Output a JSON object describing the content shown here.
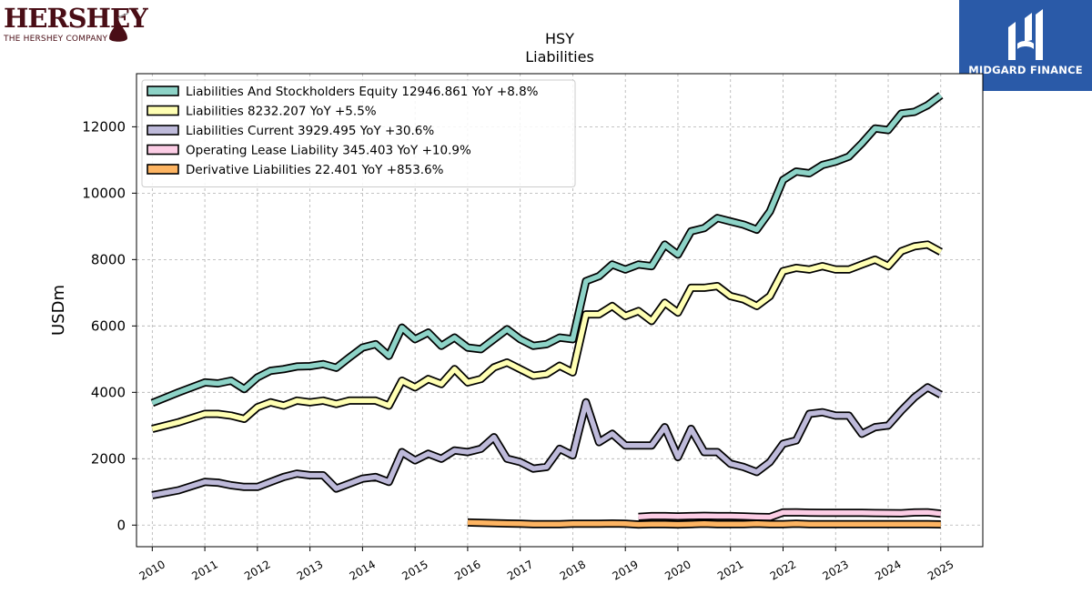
{
  "header": {
    "company_logo_text": "HERSHEY",
    "company_logo_subtext": "THE HERSHEY COMPANY",
    "publisher_logo_text": "MIDGARD FINANCE"
  },
  "chart_data": {
    "type": "line",
    "title": "HSY",
    "subtitle": "Liabilities",
    "ylabel": "USDm",
    "xlabel": "",
    "xlim": [
      2009.7,
      2025.8
    ],
    "ylim": [
      -650,
      13600
    ],
    "yticks": [
      0,
      2000,
      4000,
      6000,
      8000,
      10000,
      12000
    ],
    "xticks": [
      2010,
      2011,
      2012,
      2013,
      2014,
      2015,
      2016,
      2017,
      2018,
      2019,
      2020,
      2021,
      2022,
      2023,
      2024,
      2025
    ],
    "grid": true,
    "legend_position": "top-left",
    "series": [
      {
        "name": "Liabilities And Stockholders Equity",
        "label": "Liabilities And Stockholders Equity  12946.861 YoY +8.8%",
        "color": "#8dd3c7",
        "points": [
          [
            2010.0,
            3680
          ],
          [
            2010.5,
            4000
          ],
          [
            2011.0,
            4300
          ],
          [
            2011.25,
            4270
          ],
          [
            2011.5,
            4350
          ],
          [
            2011.75,
            4100
          ],
          [
            2012.0,
            4450
          ],
          [
            2012.25,
            4650
          ],
          [
            2012.5,
            4700
          ],
          [
            2012.75,
            4780
          ],
          [
            2013.0,
            4790
          ],
          [
            2013.25,
            4850
          ],
          [
            2013.5,
            4740
          ],
          [
            2013.75,
            5050
          ],
          [
            2014.0,
            5350
          ],
          [
            2014.25,
            5450
          ],
          [
            2014.5,
            5100
          ],
          [
            2014.75,
            5950
          ],
          [
            2015.0,
            5600
          ],
          [
            2015.25,
            5800
          ],
          [
            2015.5,
            5400
          ],
          [
            2015.75,
            5650
          ],
          [
            2016.0,
            5350
          ],
          [
            2016.25,
            5300
          ],
          [
            2016.5,
            5600
          ],
          [
            2016.75,
            5900
          ],
          [
            2017.0,
            5600
          ],
          [
            2017.25,
            5400
          ],
          [
            2017.5,
            5450
          ],
          [
            2017.75,
            5650
          ],
          [
            2018.0,
            5600
          ],
          [
            2018.25,
            7350
          ],
          [
            2018.5,
            7500
          ],
          [
            2018.75,
            7850
          ],
          [
            2019.0,
            7700
          ],
          [
            2019.25,
            7850
          ],
          [
            2019.5,
            7800
          ],
          [
            2019.75,
            8450
          ],
          [
            2020.0,
            8150
          ],
          [
            2020.25,
            8850
          ],
          [
            2020.5,
            8950
          ],
          [
            2020.75,
            9250
          ],
          [
            2021.0,
            9150
          ],
          [
            2021.25,
            9050
          ],
          [
            2021.5,
            8900
          ],
          [
            2021.75,
            9450
          ],
          [
            2022.0,
            10400
          ],
          [
            2022.25,
            10650
          ],
          [
            2022.5,
            10600
          ],
          [
            2022.75,
            10850
          ],
          [
            2023.0,
            10950
          ],
          [
            2023.25,
            11100
          ],
          [
            2023.5,
            11500
          ],
          [
            2023.75,
            11950
          ],
          [
            2024.0,
            11900
          ],
          [
            2024.25,
            12400
          ],
          [
            2024.5,
            12450
          ],
          [
            2024.75,
            12650
          ],
          [
            2025.0,
            12946.861
          ]
        ]
      },
      {
        "name": "Liabilities",
        "label": "Liabilities  8232.207 YoY +5.5%",
        "color": "#ffffb3",
        "points": [
          [
            2010.0,
            2900
          ],
          [
            2010.5,
            3100
          ],
          [
            2011.0,
            3350
          ],
          [
            2011.25,
            3350
          ],
          [
            2011.5,
            3300
          ],
          [
            2011.75,
            3200
          ],
          [
            2012.0,
            3550
          ],
          [
            2012.25,
            3700
          ],
          [
            2012.5,
            3600
          ],
          [
            2012.75,
            3750
          ],
          [
            2013.0,
            3700
          ],
          [
            2013.25,
            3750
          ],
          [
            2013.5,
            3650
          ],
          [
            2013.75,
            3750
          ],
          [
            2014.0,
            3750
          ],
          [
            2014.25,
            3750
          ],
          [
            2014.5,
            3600
          ],
          [
            2014.75,
            4350
          ],
          [
            2015.0,
            4150
          ],
          [
            2015.25,
            4400
          ],
          [
            2015.5,
            4250
          ],
          [
            2015.75,
            4700
          ],
          [
            2016.0,
            4300
          ],
          [
            2016.25,
            4400
          ],
          [
            2016.5,
            4750
          ],
          [
            2016.75,
            4900
          ],
          [
            2017.0,
            4700
          ],
          [
            2017.25,
            4500
          ],
          [
            2017.5,
            4550
          ],
          [
            2017.75,
            4800
          ],
          [
            2018.0,
            4600
          ],
          [
            2018.25,
            6350
          ],
          [
            2018.5,
            6350
          ],
          [
            2018.75,
            6600
          ],
          [
            2019.0,
            6300
          ],
          [
            2019.25,
            6450
          ],
          [
            2019.5,
            6150
          ],
          [
            2019.75,
            6700
          ],
          [
            2020.0,
            6400
          ],
          [
            2020.25,
            7150
          ],
          [
            2020.5,
            7150
          ],
          [
            2020.75,
            7200
          ],
          [
            2021.0,
            6900
          ],
          [
            2021.25,
            6800
          ],
          [
            2021.5,
            6600
          ],
          [
            2021.75,
            6900
          ],
          [
            2022.0,
            7650
          ],
          [
            2022.25,
            7750
          ],
          [
            2022.5,
            7700
          ],
          [
            2022.75,
            7800
          ],
          [
            2023.0,
            7700
          ],
          [
            2023.25,
            7700
          ],
          [
            2023.5,
            7850
          ],
          [
            2023.75,
            8000
          ],
          [
            2024.0,
            7800
          ],
          [
            2024.25,
            8250
          ],
          [
            2024.5,
            8400
          ],
          [
            2024.75,
            8450
          ],
          [
            2025.0,
            8232.207
          ]
        ]
      },
      {
        "name": "Liabilities Current",
        "label": "Liabilities Current  3929.495 YoY +30.6%",
        "color": "#bebada",
        "points": [
          [
            2010.0,
            900
          ],
          [
            2010.5,
            1050
          ],
          [
            2011.0,
            1300
          ],
          [
            2011.25,
            1280
          ],
          [
            2011.5,
            1200
          ],
          [
            2011.75,
            1150
          ],
          [
            2012.0,
            1150
          ],
          [
            2012.25,
            1300
          ],
          [
            2012.5,
            1450
          ],
          [
            2012.75,
            1550
          ],
          [
            2013.0,
            1500
          ],
          [
            2013.25,
            1500
          ],
          [
            2013.5,
            1100
          ],
          [
            2013.75,
            1250
          ],
          [
            2014.0,
            1400
          ],
          [
            2014.25,
            1450
          ],
          [
            2014.5,
            1300
          ],
          [
            2014.75,
            2200
          ],
          [
            2015.0,
            1950
          ],
          [
            2015.25,
            2150
          ],
          [
            2015.5,
            2000
          ],
          [
            2015.75,
            2250
          ],
          [
            2016.0,
            2200
          ],
          [
            2016.25,
            2300
          ],
          [
            2016.5,
            2650
          ],
          [
            2016.75,
            2000
          ],
          [
            2017.0,
            1900
          ],
          [
            2017.25,
            1700
          ],
          [
            2017.5,
            1750
          ],
          [
            2017.75,
            2300
          ],
          [
            2018.0,
            2100
          ],
          [
            2018.25,
            3700
          ],
          [
            2018.5,
            2500
          ],
          [
            2018.75,
            2750
          ],
          [
            2019.0,
            2400
          ],
          [
            2019.25,
            2400
          ],
          [
            2019.5,
            2400
          ],
          [
            2019.75,
            2950
          ],
          [
            2020.0,
            2050
          ],
          [
            2020.25,
            2900
          ],
          [
            2020.5,
            2200
          ],
          [
            2020.75,
            2200
          ],
          [
            2021.0,
            1850
          ],
          [
            2021.25,
            1750
          ],
          [
            2021.5,
            1600
          ],
          [
            2021.75,
            1900
          ],
          [
            2022.0,
            2450
          ],
          [
            2022.25,
            2550
          ],
          [
            2022.5,
            3350
          ],
          [
            2022.75,
            3400
          ],
          [
            2023.0,
            3300
          ],
          [
            2023.25,
            3300
          ],
          [
            2023.5,
            2750
          ],
          [
            2023.75,
            2950
          ],
          [
            2024.0,
            3000
          ],
          [
            2024.25,
            3450
          ],
          [
            2024.5,
            3850
          ],
          [
            2024.75,
            4150
          ],
          [
            2025.0,
            3929.495
          ]
        ]
      },
      {
        "name": "Operating Lease Liability",
        "label": "Operating Lease Liability  345.403 YoY +10.9%",
        "color": "#fccde5",
        "points": [
          [
            2019.25,
            250
          ],
          [
            2019.5,
            270
          ],
          [
            2019.75,
            270
          ],
          [
            2020.0,
            260
          ],
          [
            2020.25,
            270
          ],
          [
            2020.5,
            280
          ],
          [
            2020.75,
            270
          ],
          [
            2021.0,
            270
          ],
          [
            2021.25,
            260
          ],
          [
            2021.5,
            250
          ],
          [
            2021.75,
            240
          ],
          [
            2022.0,
            380
          ],
          [
            2022.25,
            385
          ],
          [
            2022.5,
            375
          ],
          [
            2022.75,
            370
          ],
          [
            2023.0,
            370
          ],
          [
            2023.25,
            370
          ],
          [
            2023.5,
            370
          ],
          [
            2023.75,
            365
          ],
          [
            2024.0,
            360
          ],
          [
            2024.25,
            355
          ],
          [
            2024.5,
            380
          ],
          [
            2024.75,
            385
          ],
          [
            2025.0,
            345.403
          ]
        ]
      },
      {
        "name": "Derivative Liabilities",
        "label": "Derivative Liabilities  22.401 YoY +853.6%",
        "color": "#fdb462",
        "points": [
          [
            2016.0,
            80
          ],
          [
            2016.25,
            70
          ],
          [
            2016.5,
            60
          ],
          [
            2016.75,
            50
          ],
          [
            2017.0,
            40
          ],
          [
            2017.25,
            30
          ],
          [
            2017.5,
            30
          ],
          [
            2017.75,
            30
          ],
          [
            2018.0,
            40
          ],
          [
            2018.25,
            40
          ],
          [
            2018.5,
            40
          ],
          [
            2018.75,
            50
          ],
          [
            2019.0,
            40
          ],
          [
            2019.25,
            20
          ],
          [
            2019.5,
            30
          ],
          [
            2019.75,
            30
          ],
          [
            2020.0,
            20
          ],
          [
            2020.25,
            30
          ],
          [
            2020.5,
            40
          ],
          [
            2020.75,
            30
          ],
          [
            2021.0,
            30
          ],
          [
            2021.25,
            30
          ],
          [
            2021.5,
            40
          ],
          [
            2021.75,
            30
          ],
          [
            2022.0,
            30
          ],
          [
            2022.25,
            40
          ],
          [
            2022.5,
            30
          ],
          [
            2022.75,
            30
          ],
          [
            2023.0,
            30
          ],
          [
            2023.25,
            30
          ],
          [
            2023.5,
            30
          ],
          [
            2023.75,
            30
          ],
          [
            2024.0,
            30
          ],
          [
            2024.25,
            30
          ],
          [
            2024.5,
            30
          ],
          [
            2024.75,
            30
          ],
          [
            2025.0,
            22.401
          ]
        ]
      }
    ]
  }
}
